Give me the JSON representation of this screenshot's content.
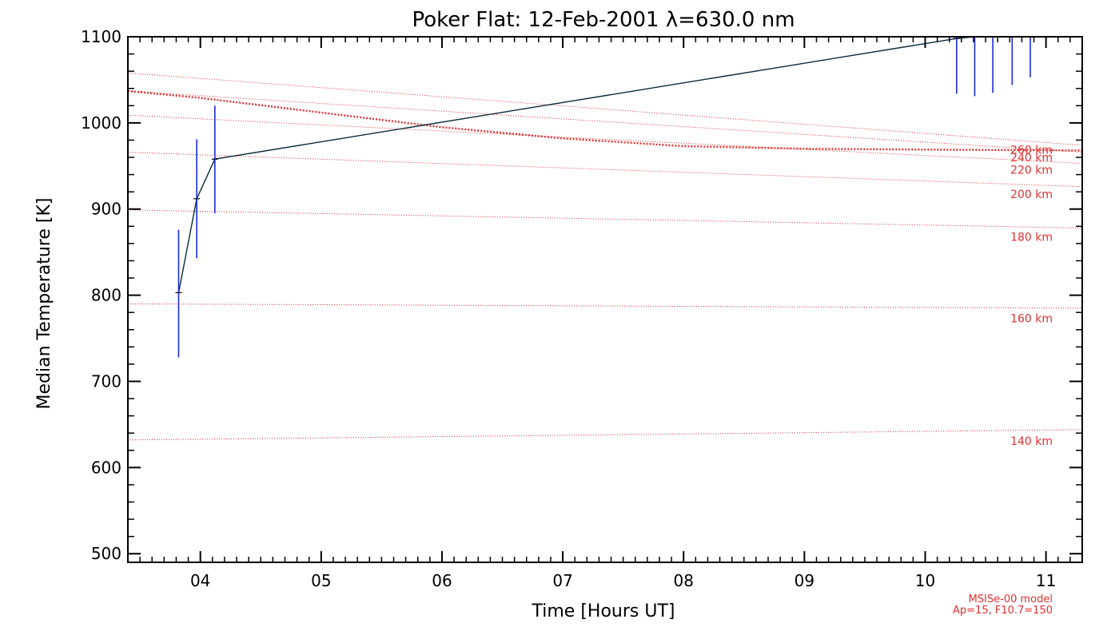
{
  "chart_data": {
    "type": "line",
    "title": "Poker Flat: 12-Feb-2001 λ=630.0 nm",
    "xlabel": "Time [Hours UT]",
    "ylabel": "Median Temperature [K]",
    "xlim": [
      3.4,
      11.3
    ],
    "ylim": [
      490,
      1100
    ],
    "xticks": [
      4,
      5,
      6,
      7,
      8,
      9,
      10,
      11
    ],
    "xtick_labels": [
      "04",
      "05",
      "06",
      "07",
      "08",
      "09",
      "10",
      "11"
    ],
    "yticks": [
      500,
      600,
      700,
      800,
      900,
      1000,
      1100
    ],
    "ytick_labels": [
      "500",
      "600",
      "700",
      "800",
      "900",
      "1000",
      "1100"
    ],
    "measured": {
      "name": "Median temperature",
      "color": "#0a2a3a",
      "errorbar_color": "#1a2ad8",
      "points": [
        {
          "x": 3.82,
          "y": 803,
          "low": 728,
          "high": 876
        },
        {
          "x": 3.97,
          "y": 912,
          "low": 843,
          "high": 981
        },
        {
          "x": 4.12,
          "y": 958,
          "low": 895,
          "high": 1020
        },
        {
          "x": 10.26,
          "y": 1098,
          "low": 1034,
          "high": 1104
        },
        {
          "x": 10.41,
          "y": 1105,
          "low": 1031,
          "high": 1106
        },
        {
          "x": 10.56,
          "y": 1106,
          "low": 1035,
          "high": 1106
        },
        {
          "x": 10.72,
          "y": 1106,
          "low": 1044,
          "high": 1106
        },
        {
          "x": 10.87,
          "y": 1106,
          "low": 1053,
          "high": 1106
        }
      ]
    },
    "model_lines": [
      {
        "label": "140 km",
        "x": [
          3.4,
          11.3
        ],
        "y": [
          632,
          644
        ]
      },
      {
        "label": "160 km",
        "x": [
          3.4,
          11.3
        ],
        "y": [
          790,
          785
        ]
      },
      {
        "label": "180 km",
        "x": [
          3.4,
          11.3
        ],
        "y": [
          899,
          878
        ]
      },
      {
        "label": "200 km",
        "x": [
          3.4,
          11.3
        ],
        "y": [
          966,
          926
        ]
      },
      {
        "label": "220 km",
        "x": [
          3.4,
          11.3
        ],
        "y": [
          1009,
          953
        ]
      },
      {
        "label": "240 km",
        "x": [
          3.4,
          11.3
        ],
        "y": [
          1037,
          966
        ]
      },
      {
        "label": "260 km",
        "x": [
          3.4,
          11.3
        ],
        "y": [
          1058,
          974
        ]
      }
    ],
    "model_median": {
      "x": [
        3.4,
        4.0,
        5.0,
        6.0,
        7.0,
        8.0,
        9.0,
        10.0,
        11.3
      ],
      "y": [
        1037,
        1029,
        1012,
        995,
        982,
        973,
        970,
        969,
        968
      ]
    },
    "model_label_x": 10.65,
    "note_lines": [
      "MSISe-00 model",
      "Ap=15, F10.7=150"
    ],
    "line_color": "#e03030"
  }
}
